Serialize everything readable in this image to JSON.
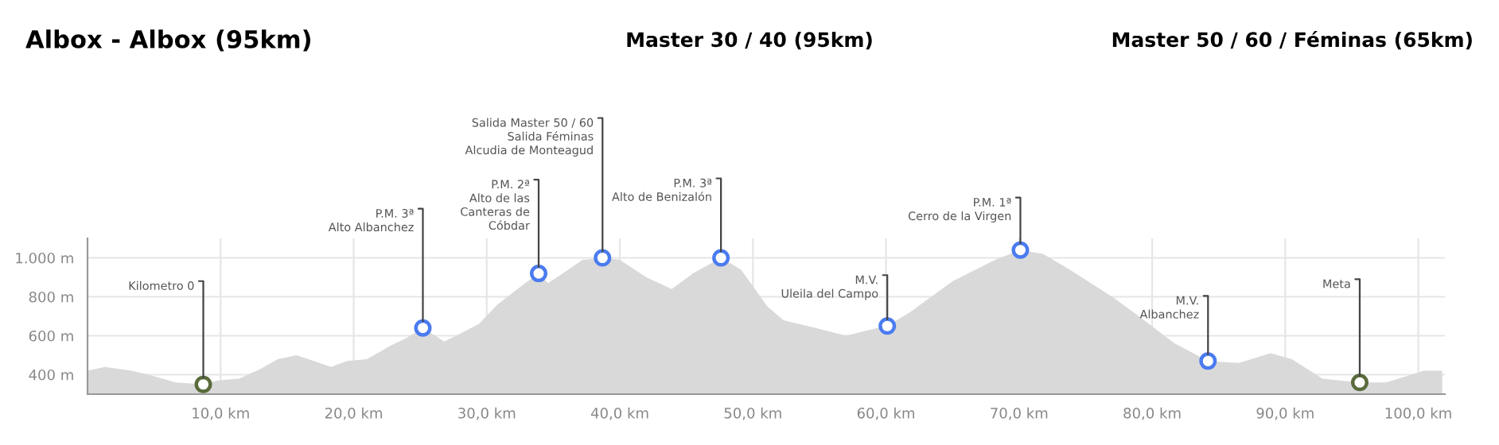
{
  "chart_data": {
    "type": "area",
    "title": "Albox - Albox (95km)",
    "subtitle": "Master 30 / 40 (95km)",
    "xlim": [
      0,
      102
    ],
    "ylim": [
      300,
      1100
    ],
    "xticks": [
      {
        "value": 10,
        "label": "10,0 km"
      },
      {
        "value": 20,
        "label": "20,0 km"
      },
      {
        "value": 30,
        "label": "30,0 km"
      },
      {
        "value": 40,
        "label": "40,0 km"
      },
      {
        "value": 50,
        "label": "50,0 km"
      },
      {
        "value": 60,
        "label": "60,0 km"
      },
      {
        "value": 70,
        "label": "70,0 km"
      },
      {
        "value": 80,
        "label": "80,0 km"
      },
      {
        "value": 90,
        "label": "90,0 km"
      },
      {
        "value": 100,
        "label": "100,0 km"
      }
    ],
    "yticks": [
      {
        "value": 400,
        "label": "400 m"
      },
      {
        "value": 600,
        "label": "600 m"
      },
      {
        "value": 800,
        "label": "800 m"
      },
      {
        "value": 1000,
        "label": "1.000 m"
      }
    ],
    "grid": true,
    "series": [
      {
        "color": "#d9d9d9",
        "x": [
          0,
          1.3,
          3.3,
          4.6,
          6.6,
          8.7,
          9.8,
          11.4,
          13,
          14.3,
          15.7,
          17,
          18.3,
          19.5,
          21,
          22.8,
          24,
          25.2,
          26.8,
          28,
          29.4,
          30.8,
          32.5,
          33.9,
          34.6,
          35.5,
          37.2,
          38.7,
          40,
          42,
          43.9,
          45.5,
          47.6,
          49.1,
          51.1,
          52.3,
          54.7,
          57,
          58.7,
          60.1,
          61.8,
          65,
          68.2,
          70.1,
          71.8,
          73.8,
          77,
          79,
          81.7,
          84.2,
          86.5,
          88.9,
          90.5,
          92.8,
          95.6,
          97.6,
          100.4,
          101.8
        ],
        "values": [
          420,
          440,
          420,
          400,
          360,
          350,
          370,
          380,
          430,
          480,
          500,
          470,
          440,
          470,
          480,
          550,
          590,
          640,
          570,
          610,
          660,
          760,
          850,
          920,
          870,
          910,
          990,
          1000,
          990,
          900,
          840,
          920,
          1000,
          940,
          750,
          680,
          640,
          600,
          630,
          650,
          720,
          880,
          990,
          1040,
          1020,
          940,
          800,
          700,
          560,
          470,
          460,
          510,
          480,
          380,
          360,
          360,
          420,
          420
        ]
      },
      {
        "type": "scatter",
        "color": "#5a6b3c",
        "marker": "circle",
        "x": [
          8.7,
          95.6
        ],
        "values": [
          350,
          360
        ]
      },
      {
        "type": "scatter",
        "color": "#4a7bf0",
        "marker": "circle",
        "x": [
          25.2,
          33.9,
          38.7,
          47.6,
          60.1,
          70.1,
          84.2
        ],
        "values": [
          640,
          920,
          1000,
          1000,
          650,
          1040,
          470
        ]
      }
    ],
    "annotations": [
      "Master 50 / 60 / Féminas (65km)",
      {
        "text": "Kilometro 0",
        "x": 8.7,
        "y": 350
      },
      {
        "text": "P.M. 3ª\nAlto Albanchez",
        "x": 25.2,
        "y": 640
      },
      {
        "text": "P.M. 2ª\nAlto de las\nCanteras de\nCóbdar",
        "x": 33.9,
        "y": 920
      },
      {
        "text": "Salida Master 50 / 60\nSalida Féminas\nAlcudia de Monteagud",
        "x": 38.7,
        "y": 1000
      },
      {
        "text": "P.M. 3ª\nAlto de Benizalón",
        "x": 47.6,
        "y": 1000
      },
      {
        "text": "M.V.\nUleila del Campo",
        "x": 60.1,
        "y": 650
      },
      {
        "text": "P.M. 1ª\nCerro de la Virgen",
        "x": 70.1,
        "y": 1040
      },
      {
        "text": "M.V.\nAlbanchez",
        "x": 84.2,
        "y": 470
      },
      {
        "text": "Meta",
        "x": 95.6,
        "y": 360
      }
    ]
  }
}
